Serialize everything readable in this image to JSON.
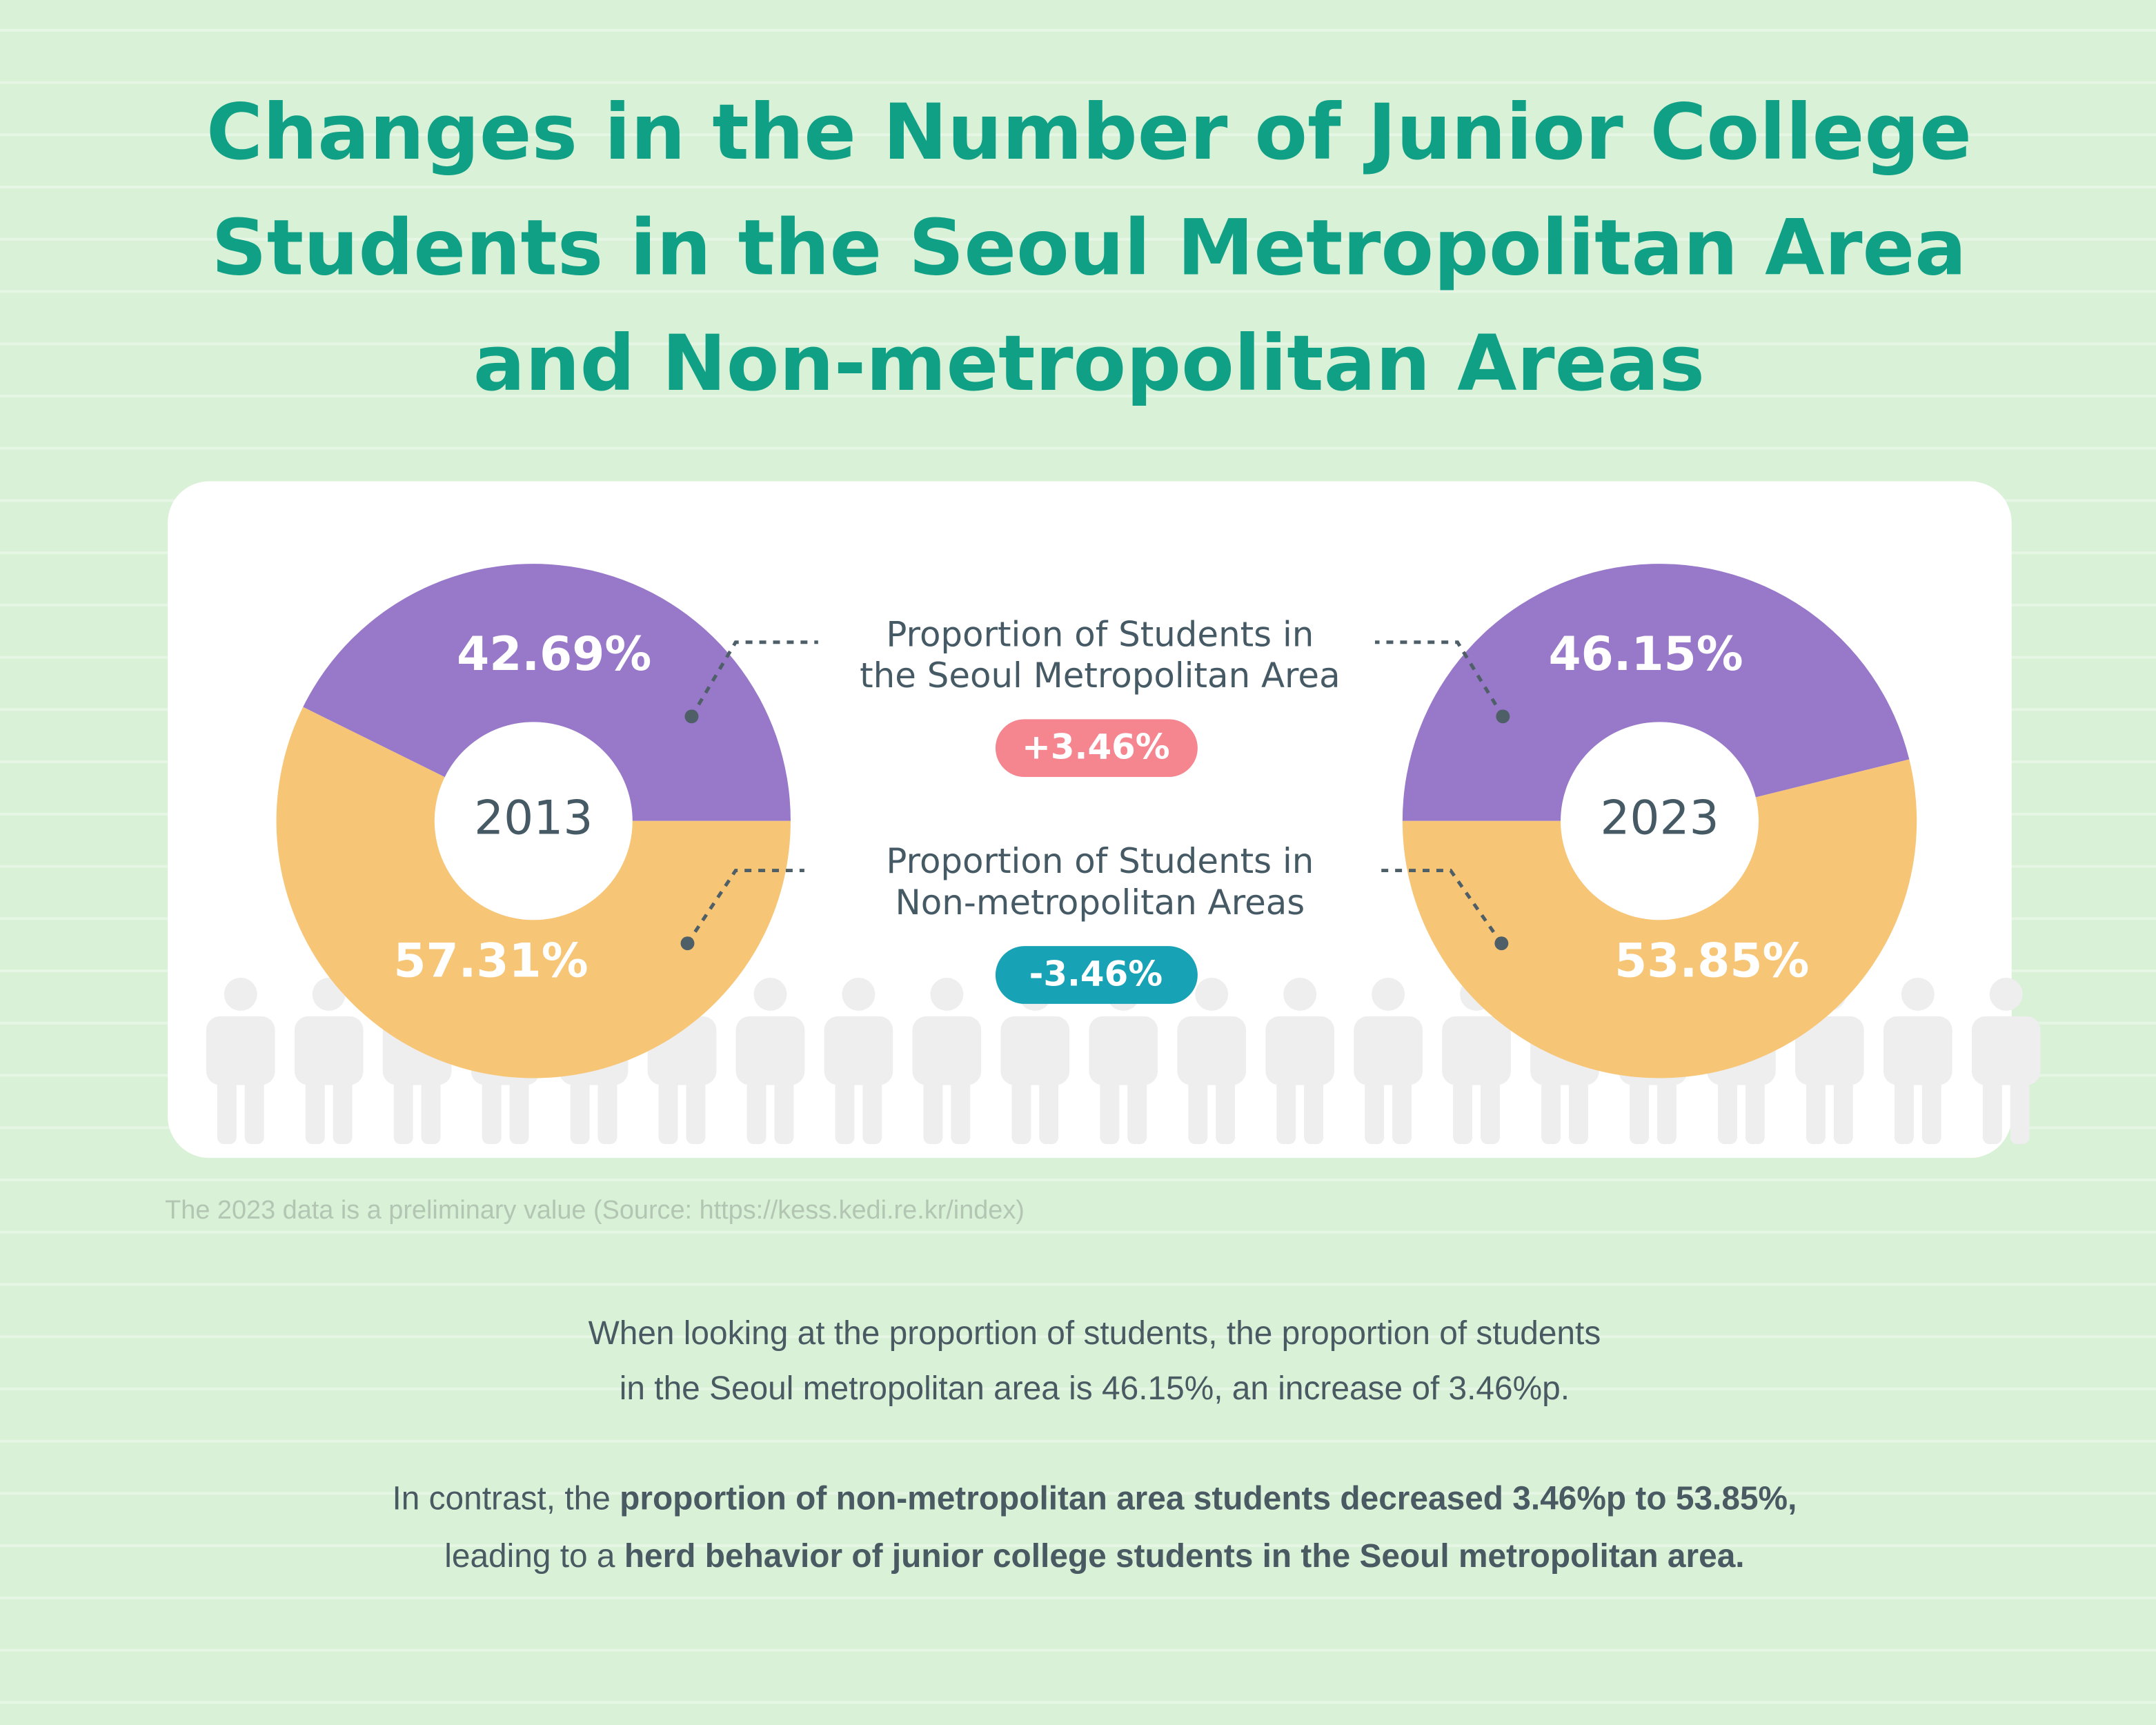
{
  "title": [
    "Changes in the Number of Junior College",
    "Students in the Seoul Metropolitan Area",
    "and Non-metropolitan Areas"
  ],
  "chart_data": [
    {
      "type": "pie",
      "center_label": "2013",
      "values": [
        42.69,
        57.31
      ],
      "value_labels": [
        "42.69%",
        "57.31%"
      ],
      "colors": [
        "#9878c9",
        "#f7c576"
      ]
    },
    {
      "type": "pie",
      "center_label": "2023",
      "values": [
        46.15,
        53.85
      ],
      "value_labels": [
        "46.15%",
        "53.85%"
      ],
      "colors": [
        "#9878c9",
        "#f7c576"
      ]
    }
  ],
  "legend": [
    {
      "lines": [
        "Proportion of Students in",
        "the Seoul Metropolitan Area"
      ],
      "change": "+3.46%",
      "color": "#f5868f"
    },
    {
      "lines": [
        "Proportion of Students in",
        "Non-metropolitan Areas"
      ],
      "change": "-3.46%",
      "color": "#17a2b5"
    }
  ],
  "footnote": "The 2023 data is a preliminary value (Source: https://kess.kedi.re.kr/index)",
  "paragraphs": [
    [
      [
        {
          "text": "When looking at the proportion of students, the proportion of students"
        }
      ],
      [
        {
          "text": "in the Seoul metropolitan area is 46.15%, an increase of 3.46%p."
        }
      ]
    ],
    [
      [
        {
          "text": "In contrast, the "
        },
        {
          "text": "proportion of non-metropolitan area students decreased 3.46%p to 53.85%,",
          "bold": true
        }
      ],
      [
        {
          "text": "leading to a "
        },
        {
          "text": "herd behavior of junior college students in the Seoul metropolitan area.",
          "bold": true
        }
      ]
    ]
  ]
}
